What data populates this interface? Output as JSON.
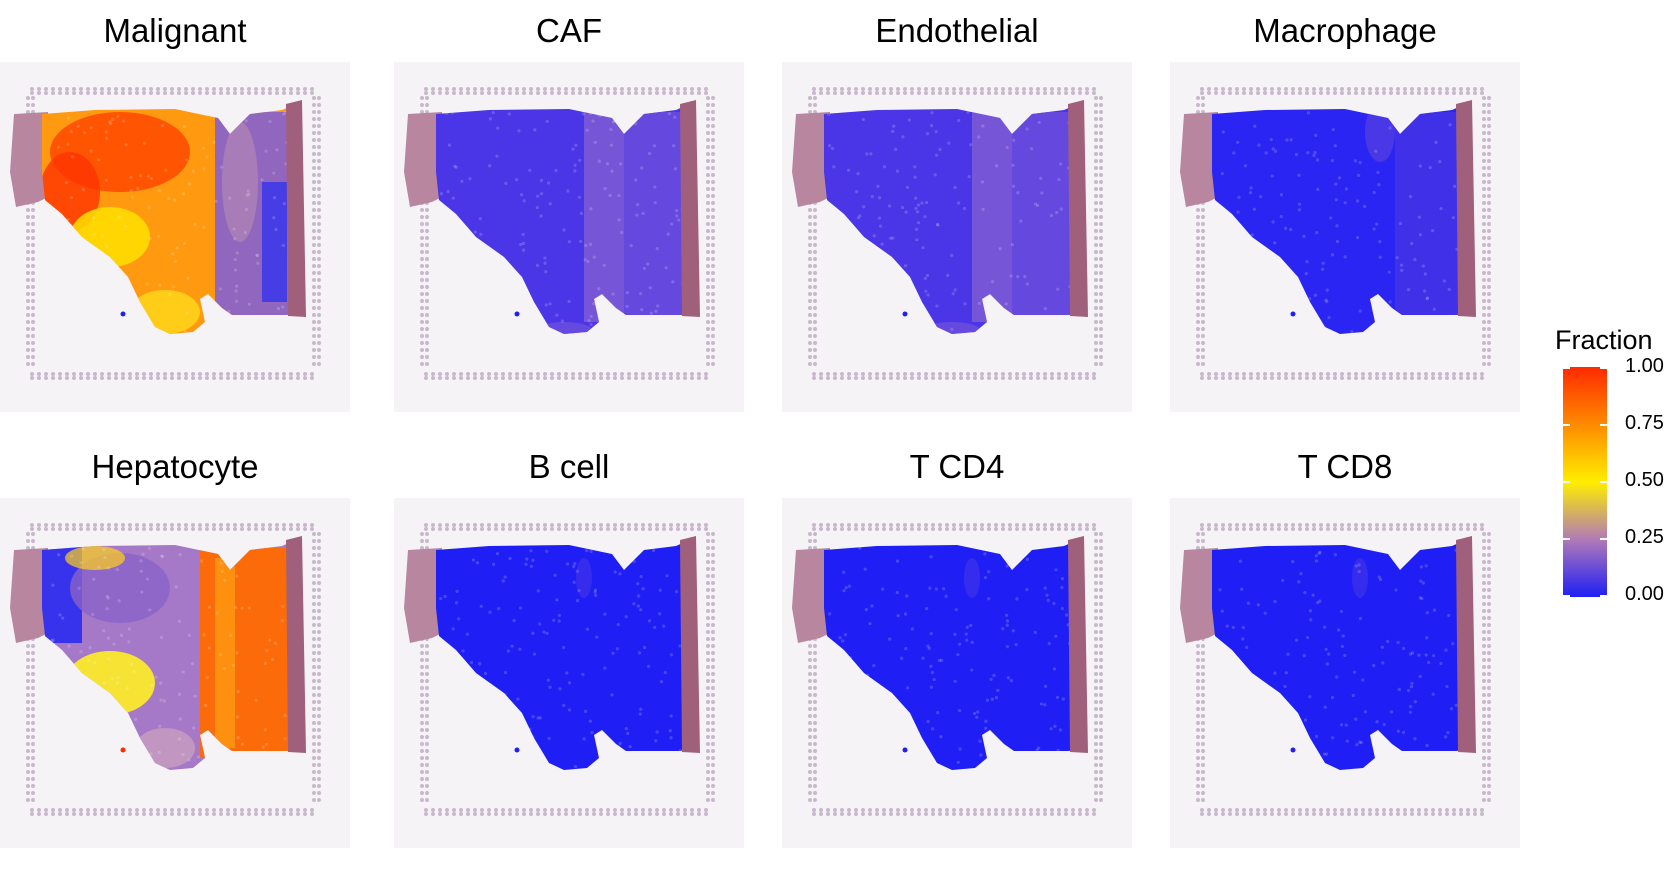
{
  "panels": [
    {
      "title": "Malignant",
      "pattern": "malignant"
    },
    {
      "title": "CAF",
      "pattern": "lowpurple"
    },
    {
      "title": "Endothelial",
      "pattern": "lowpurple"
    },
    {
      "title": "Macrophage",
      "pattern": "lowblue"
    },
    {
      "title": "Hepatocyte",
      "pattern": "hepatocyte"
    },
    {
      "title": "B cell",
      "pattern": "blue"
    },
    {
      "title": "T CD4",
      "pattern": "blue"
    },
    {
      "title": "T CD8",
      "pattern": "blue"
    }
  ],
  "legend": {
    "title": "Fraction",
    "ticks": [
      "1.00",
      "0.75",
      "0.50",
      "0.25",
      "0.00"
    ],
    "colors": [
      "#ff2a00",
      "#ff8a00",
      "#ffee00",
      "#b07ab8",
      "#1f1ff5"
    ]
  }
}
